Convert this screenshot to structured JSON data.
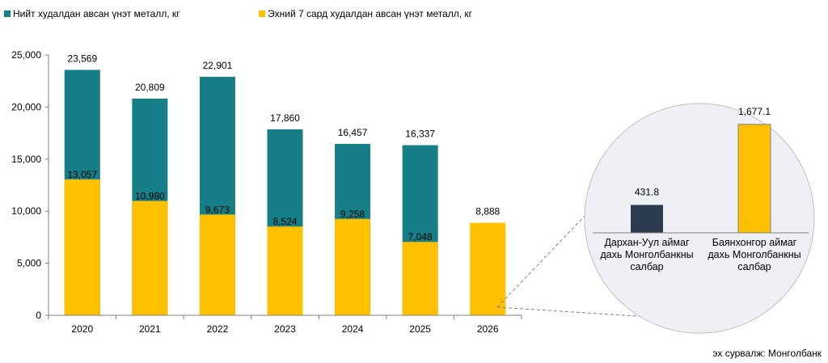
{
  "colors": {
    "total": "#167e87",
    "first7": "#ffc000",
    "darkhan": "#2e3c50",
    "bayankhongor": "#ffc000",
    "axis": "#7f7f7f",
    "circle_fill": "#eef0f5",
    "circle_stroke": "#bfbfbf"
  },
  "chart_data": [
    {
      "type": "bar",
      "title": "",
      "xlabel": "",
      "ylabel": "",
      "ylim": [
        0,
        25000
      ],
      "yticks": [
        0,
        5000,
        10000,
        15000,
        20000,
        25000
      ],
      "ytick_labels": [
        "0",
        "5,000",
        "10,000",
        "15,000",
        "20,000",
        "25,000"
      ],
      "categories": [
        "2020",
        "2021",
        "2022",
        "2023",
        "2024",
        "2025",
        "2026"
      ],
      "legend_position": "top-left",
      "series": [
        {
          "name": "Нийт худалдан авсан үнэт металл, кг",
          "values": [
            23569,
            20809,
            22901,
            17860,
            16457,
            16337,
            null
          ],
          "labels": [
            "23,569",
            "20,809",
            "22,901",
            "17,860",
            "16,457",
            "16,337",
            ""
          ]
        },
        {
          "name": "Эхний 7 сард худалдан авсан үнэт металл, кг",
          "values": [
            13057,
            10980,
            9673,
            8524,
            9258,
            7048,
            8888
          ],
          "labels": [
            "13,057",
            "10,980",
            "9,673",
            "8,524",
            "9,258",
            "7,048",
            "8,888"
          ]
        }
      ]
    },
    {
      "type": "bar",
      "title": "",
      "categories": [
        "Дархан-Уул аймаг дахь Монголбанкны салбар",
        "Баянхонгор аймаг дахь Монголбанкны салбар"
      ],
      "category_lines": [
        [
          "Дархан-Уул аймаг",
          "дахь Монголбанкны",
          "салбар"
        ],
        [
          "Баянхонгор аймаг",
          "дахь Монголбанкны",
          "салбар"
        ]
      ],
      "values": [
        431.8,
        1677.1
      ],
      "labels": [
        "431.8",
        "1,677.1"
      ],
      "ylim": [
        0,
        1900
      ]
    }
  ],
  "source": "эх сурвалж: Монголбанк"
}
